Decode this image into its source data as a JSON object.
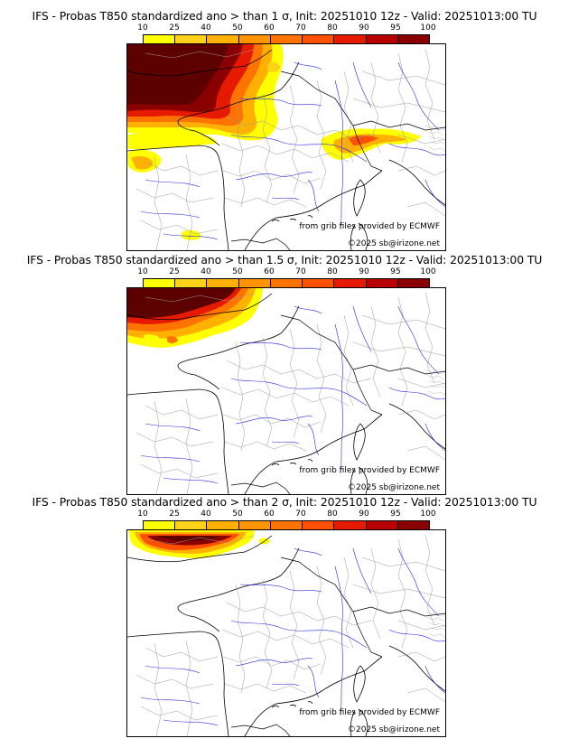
{
  "scale": {
    "labels": [
      "10",
      "25",
      "40",
      "50",
      "60",
      "70",
      "80",
      "90",
      "95",
      "100"
    ],
    "colors": [
      "#ffff00",
      "#ffd21a",
      "#ffb000",
      "#ff9400",
      "#ff7300",
      "#ff4f00",
      "#e61a00",
      "#b80000",
      "#8a0000",
      "#5c0000"
    ]
  },
  "panels": [
    {
      "title": "IFS - Probas T850  standardized ano > than 1 σ, Init: 20251010 12z - Valid: 20251013:00 TU",
      "credit_source": "from grib files provided by ECMWF",
      "credit_copy": "©2025 sb@irizone.net"
    },
    {
      "title": "IFS - Probas T850  standardized ano > than 1.5 σ, Init: 20251010 12z - Valid: 20251013:00 TU",
      "credit_source": "from grib files provided by ECMWF",
      "credit_copy": "©2025 sb@irizone.net"
    },
    {
      "title": "IFS - Probas T850  standardized ano > than 2 σ, Init: 20251010 12z - Valid: 20251013:00 TU",
      "credit_source": "from grib files provided by ECMWF",
      "credit_copy": "©2025 sb@irizone.net"
    }
  ]
}
